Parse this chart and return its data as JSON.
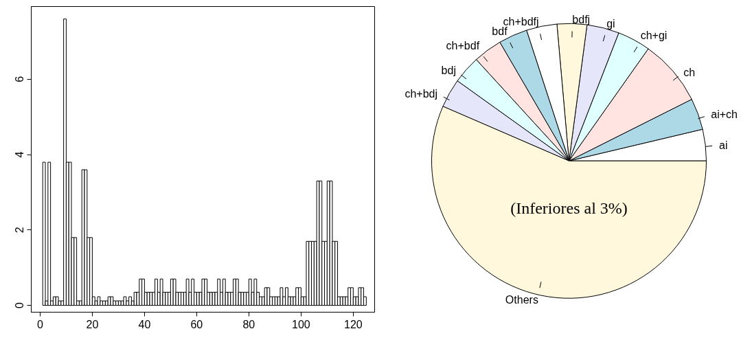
{
  "chart_data": [
    {
      "type": "histogram",
      "color": "#ffffff",
      "bins": [
        1,
        2,
        3,
        4,
        5,
        6,
        7,
        8,
        9,
        10,
        11,
        12,
        13,
        14,
        15,
        16,
        17,
        18,
        19,
        20,
        21,
        22,
        23,
        24,
        25,
        26,
        27,
        28,
        29,
        30,
        31,
        32,
        33,
        34,
        35,
        36,
        37,
        38,
        39,
        40,
        41,
        42,
        43,
        44,
        45,
        46,
        47,
        48,
        49,
        50,
        51,
        52,
        53,
        54,
        55,
        56,
        57,
        58,
        59,
        60,
        61,
        62,
        63,
        64,
        65,
        66,
        67,
        68,
        69,
        70,
        71,
        72,
        73,
        74,
        75,
        76,
        77,
        78,
        79,
        80,
        81,
        82,
        83,
        84,
        85,
        86,
        87,
        88,
        89,
        90,
        91,
        92,
        93,
        94,
        95,
        96,
        97,
        98,
        99,
        100,
        101,
        102,
        103,
        104,
        105,
        106,
        107,
        108,
        109,
        110,
        111,
        112,
        113,
        114,
        115,
        116,
        117,
        118,
        119,
        120,
        121,
        122,
        123,
        124,
        125
      ],
      "values": [
        3.8,
        0.12,
        3.8,
        0.12,
        0.23,
        0.23,
        0.12,
        0.12,
        7.6,
        3.8,
        3.8,
        1.8,
        1.8,
        0.12,
        0.12,
        3.6,
        3.6,
        1.8,
        1.8,
        0.23,
        0.12,
        0.23,
        0.12,
        0.12,
        0.12,
        0.23,
        0.23,
        0.12,
        0.12,
        0.12,
        0.12,
        0.23,
        0.12,
        0.23,
        0.12,
        0.35,
        0.35,
        0.7,
        0.7,
        0.35,
        0.35,
        0.35,
        0.35,
        0.7,
        0.35,
        0.7,
        0.35,
        0.35,
        0.35,
        0.7,
        0.7,
        0.35,
        0.35,
        0.35,
        0.35,
        0.7,
        0.35,
        0.7,
        0.35,
        0.35,
        0.35,
        0.7,
        0.7,
        0.35,
        0.35,
        0.35,
        0.35,
        0.7,
        0.35,
        0.7,
        0.35,
        0.35,
        0.35,
        0.7,
        0.7,
        0.35,
        0.35,
        0.35,
        0.35,
        0.7,
        0.35,
        0.7,
        0.35,
        0.23,
        0.23,
        0.47,
        0.47,
        0.23,
        0.23,
        0.23,
        0.23,
        0.47,
        0.23,
        0.47,
        0.23,
        0.23,
        0.23,
        0.47,
        0.47,
        0.23,
        0.23,
        1.7,
        1.7,
        1.7,
        1.7,
        3.3,
        3.3,
        1.7,
        1.7,
        3.3,
        3.3,
        1.7,
        1.7,
        0.23,
        0.23,
        0.23,
        0.23,
        0.47,
        0.47,
        0.23,
        0.23,
        0.47,
        0.47,
        0.23
      ],
      "xlim": [
        -3.4,
        128.2
      ],
      "ylim": [
        -0.18,
        7.93
      ],
      "xticks": [
        0,
        20,
        40,
        60,
        80,
        100,
        120
      ],
      "yticks": [
        0,
        2,
        4,
        6
      ]
    },
    {
      "type": "pie",
      "categories": [
        "ai",
        "ai+ch",
        "ch",
        "ch+gi",
        "gi",
        "bdfj",
        "ch+bdfj",
        "bdf",
        "ch+bdf",
        "bdj",
        "ch+bdj",
        "Others"
      ],
      "values": [
        3.7,
        3.7,
        7.8,
        3.9,
        3.8,
        3.5,
        3.6,
        3.4,
        3.4,
        3.3,
        3.4,
        56.5
      ],
      "colors": [
        "#ffffff",
        "#add8e6",
        "#ffe4e1",
        "#e0ffff",
        "#e6e6fa",
        "#fff8dc",
        "#ffffff",
        "#add8e6",
        "#ffe4e1",
        "#e0ffff",
        "#e6e6fa",
        "#fff8dc"
      ],
      "annotations": [
        "(Inferiores al 3%)"
      ]
    }
  ]
}
